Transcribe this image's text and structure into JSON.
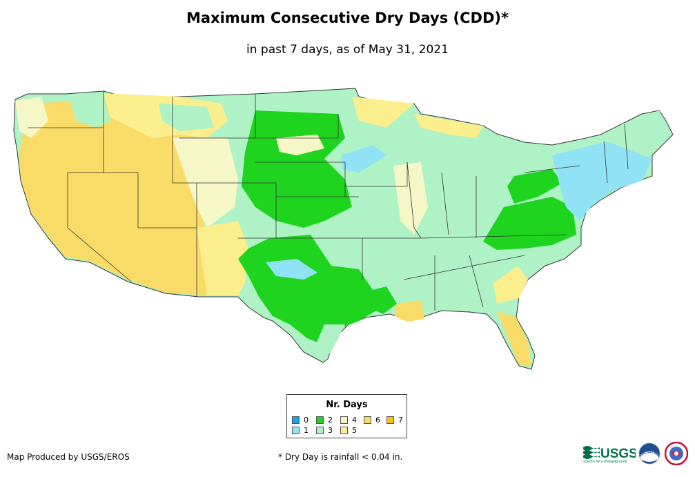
{
  "header": {
    "title": "Maximum Consecutive Dry Days (CDD)*",
    "subtitle": "in past 7 days, as of May 31, 2021"
  },
  "legend": {
    "title": "Nr. Days",
    "items": [
      {
        "label": "0",
        "color": "#1f9fe6"
      },
      {
        "label": "1",
        "color": "#8fe3f5"
      },
      {
        "label": "2",
        "color": "#1ed41e"
      },
      {
        "label": "3",
        "color": "#aef2c6"
      },
      {
        "label": "4",
        "color": "#f6f7c6"
      },
      {
        "label": "5",
        "color": "#fbee8c"
      },
      {
        "label": "6",
        "color": "#f9dc67"
      },
      {
        "label": "7",
        "color": "#fac400"
      }
    ]
  },
  "footer": {
    "credit": "Map Produced by USGS/EROS",
    "note": "* Dry Day is rainfall < 0.04 in."
  },
  "logos": {
    "usgs_text": "USGS",
    "usgs_tagline": "science for a changing world",
    "noaa_text": "noaa"
  }
}
